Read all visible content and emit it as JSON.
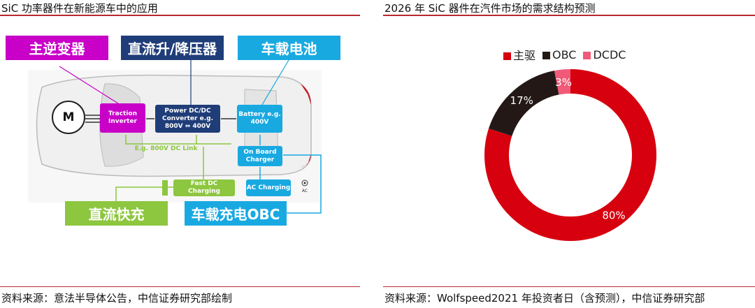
{
  "left": {
    "title": "SiC 功率器件在新能源车中的应用",
    "source": "资料来源：意法半导体公告，中信证券研究部绘制",
    "diagram": {
      "main_inverter": "主逆变器",
      "dcdc_cn": "直流升/降压器",
      "battery_cn": "车载电池",
      "fast_dc_cn": "直流快充",
      "obc_cn": "车载充电OBC",
      "motor": "M",
      "traction_inverter": "Traction Inverter",
      "power_dcdc": "Power DC/DC Converter e.g. 800V ⇔ 400V",
      "battery": "Battery e.g. 400V",
      "dc_link": "E.g. 800V DC Link",
      "on_board_charger": "On Board Charger",
      "fast_dc_charging": "Fast DC Charging",
      "ac_charging": "AC Charging",
      "ac": "AC"
    }
  },
  "right": {
    "title": "2026 年 SiC 器件在汽件市场的需求结构预测",
    "source": "资料来源：Wolfspeed2021 年投资者日（含预测），中信证券研究部"
  },
  "chart_data": {
    "type": "pie",
    "donut": true,
    "title": "2026 年 SiC 器件在汽件市场的需求结构预测",
    "legend": "top",
    "series": [
      {
        "name": "主驱",
        "value": 80,
        "label": "80%",
        "color": "#d7000f"
      },
      {
        "name": "OBC",
        "value": 17,
        "label": "17%",
        "color": "#231815"
      },
      {
        "name": "DCDC",
        "value": 3,
        "label": "3%",
        "color": "#f05a78"
      }
    ]
  },
  "colors": {
    "magenta": "#c800c8",
    "navy": "#1f3d78",
    "blue": "#19a9e1",
    "green": "#8dc63f"
  }
}
